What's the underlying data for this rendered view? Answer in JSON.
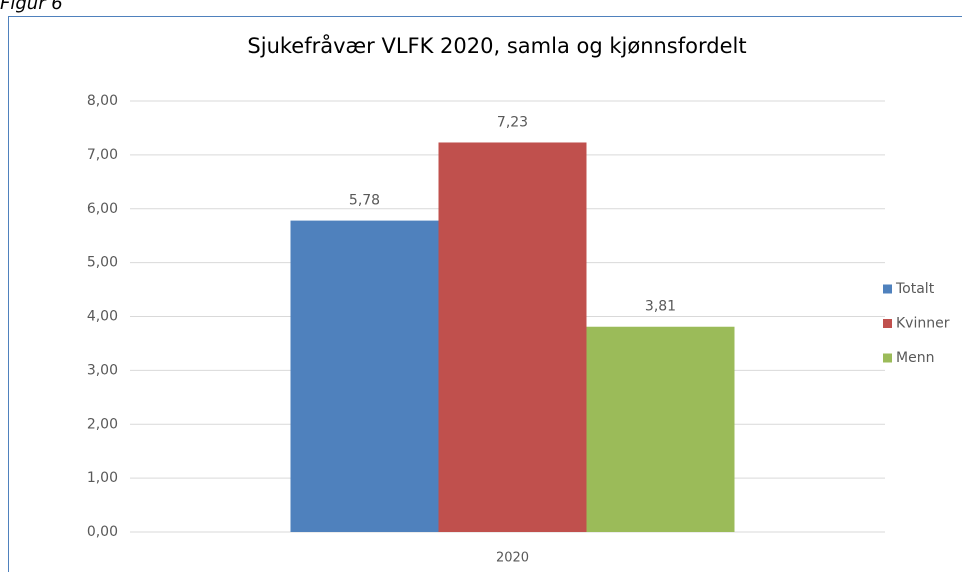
{
  "caption": "Figur 6",
  "chart_data": {
    "type": "bar",
    "title": "Sjukefråvær VLFK 2020, samla og kjønnsfordelt",
    "categories": [
      "2020"
    ],
    "series": [
      {
        "name": "Totalt",
        "color": "#4f81bd",
        "values": [
          5.78
        ],
        "value_labels": [
          "5,78"
        ]
      },
      {
        "name": "Kvinner",
        "color": "#c0504d",
        "values": [
          7.23
        ],
        "value_labels": [
          "7,23"
        ]
      },
      {
        "name": "Menn",
        "color": "#9bbb59",
        "values": [
          3.81
        ],
        "value_labels": [
          "3,81"
        ]
      }
    ],
    "ylim": [
      0,
      8
    ],
    "yticks": [
      {
        "value": 0,
        "label": "0,00"
      },
      {
        "value": 1,
        "label": "1,00"
      },
      {
        "value": 2,
        "label": "2,00"
      },
      {
        "value": 3,
        "label": "3,00"
      },
      {
        "value": 4,
        "label": "4,00"
      },
      {
        "value": 5,
        "label": "5,00"
      },
      {
        "value": 6,
        "label": "6,00"
      },
      {
        "value": 7,
        "label": "7,00"
      },
      {
        "value": 8,
        "label": "8,00"
      }
    ],
    "grid": true,
    "legend": "right"
  }
}
